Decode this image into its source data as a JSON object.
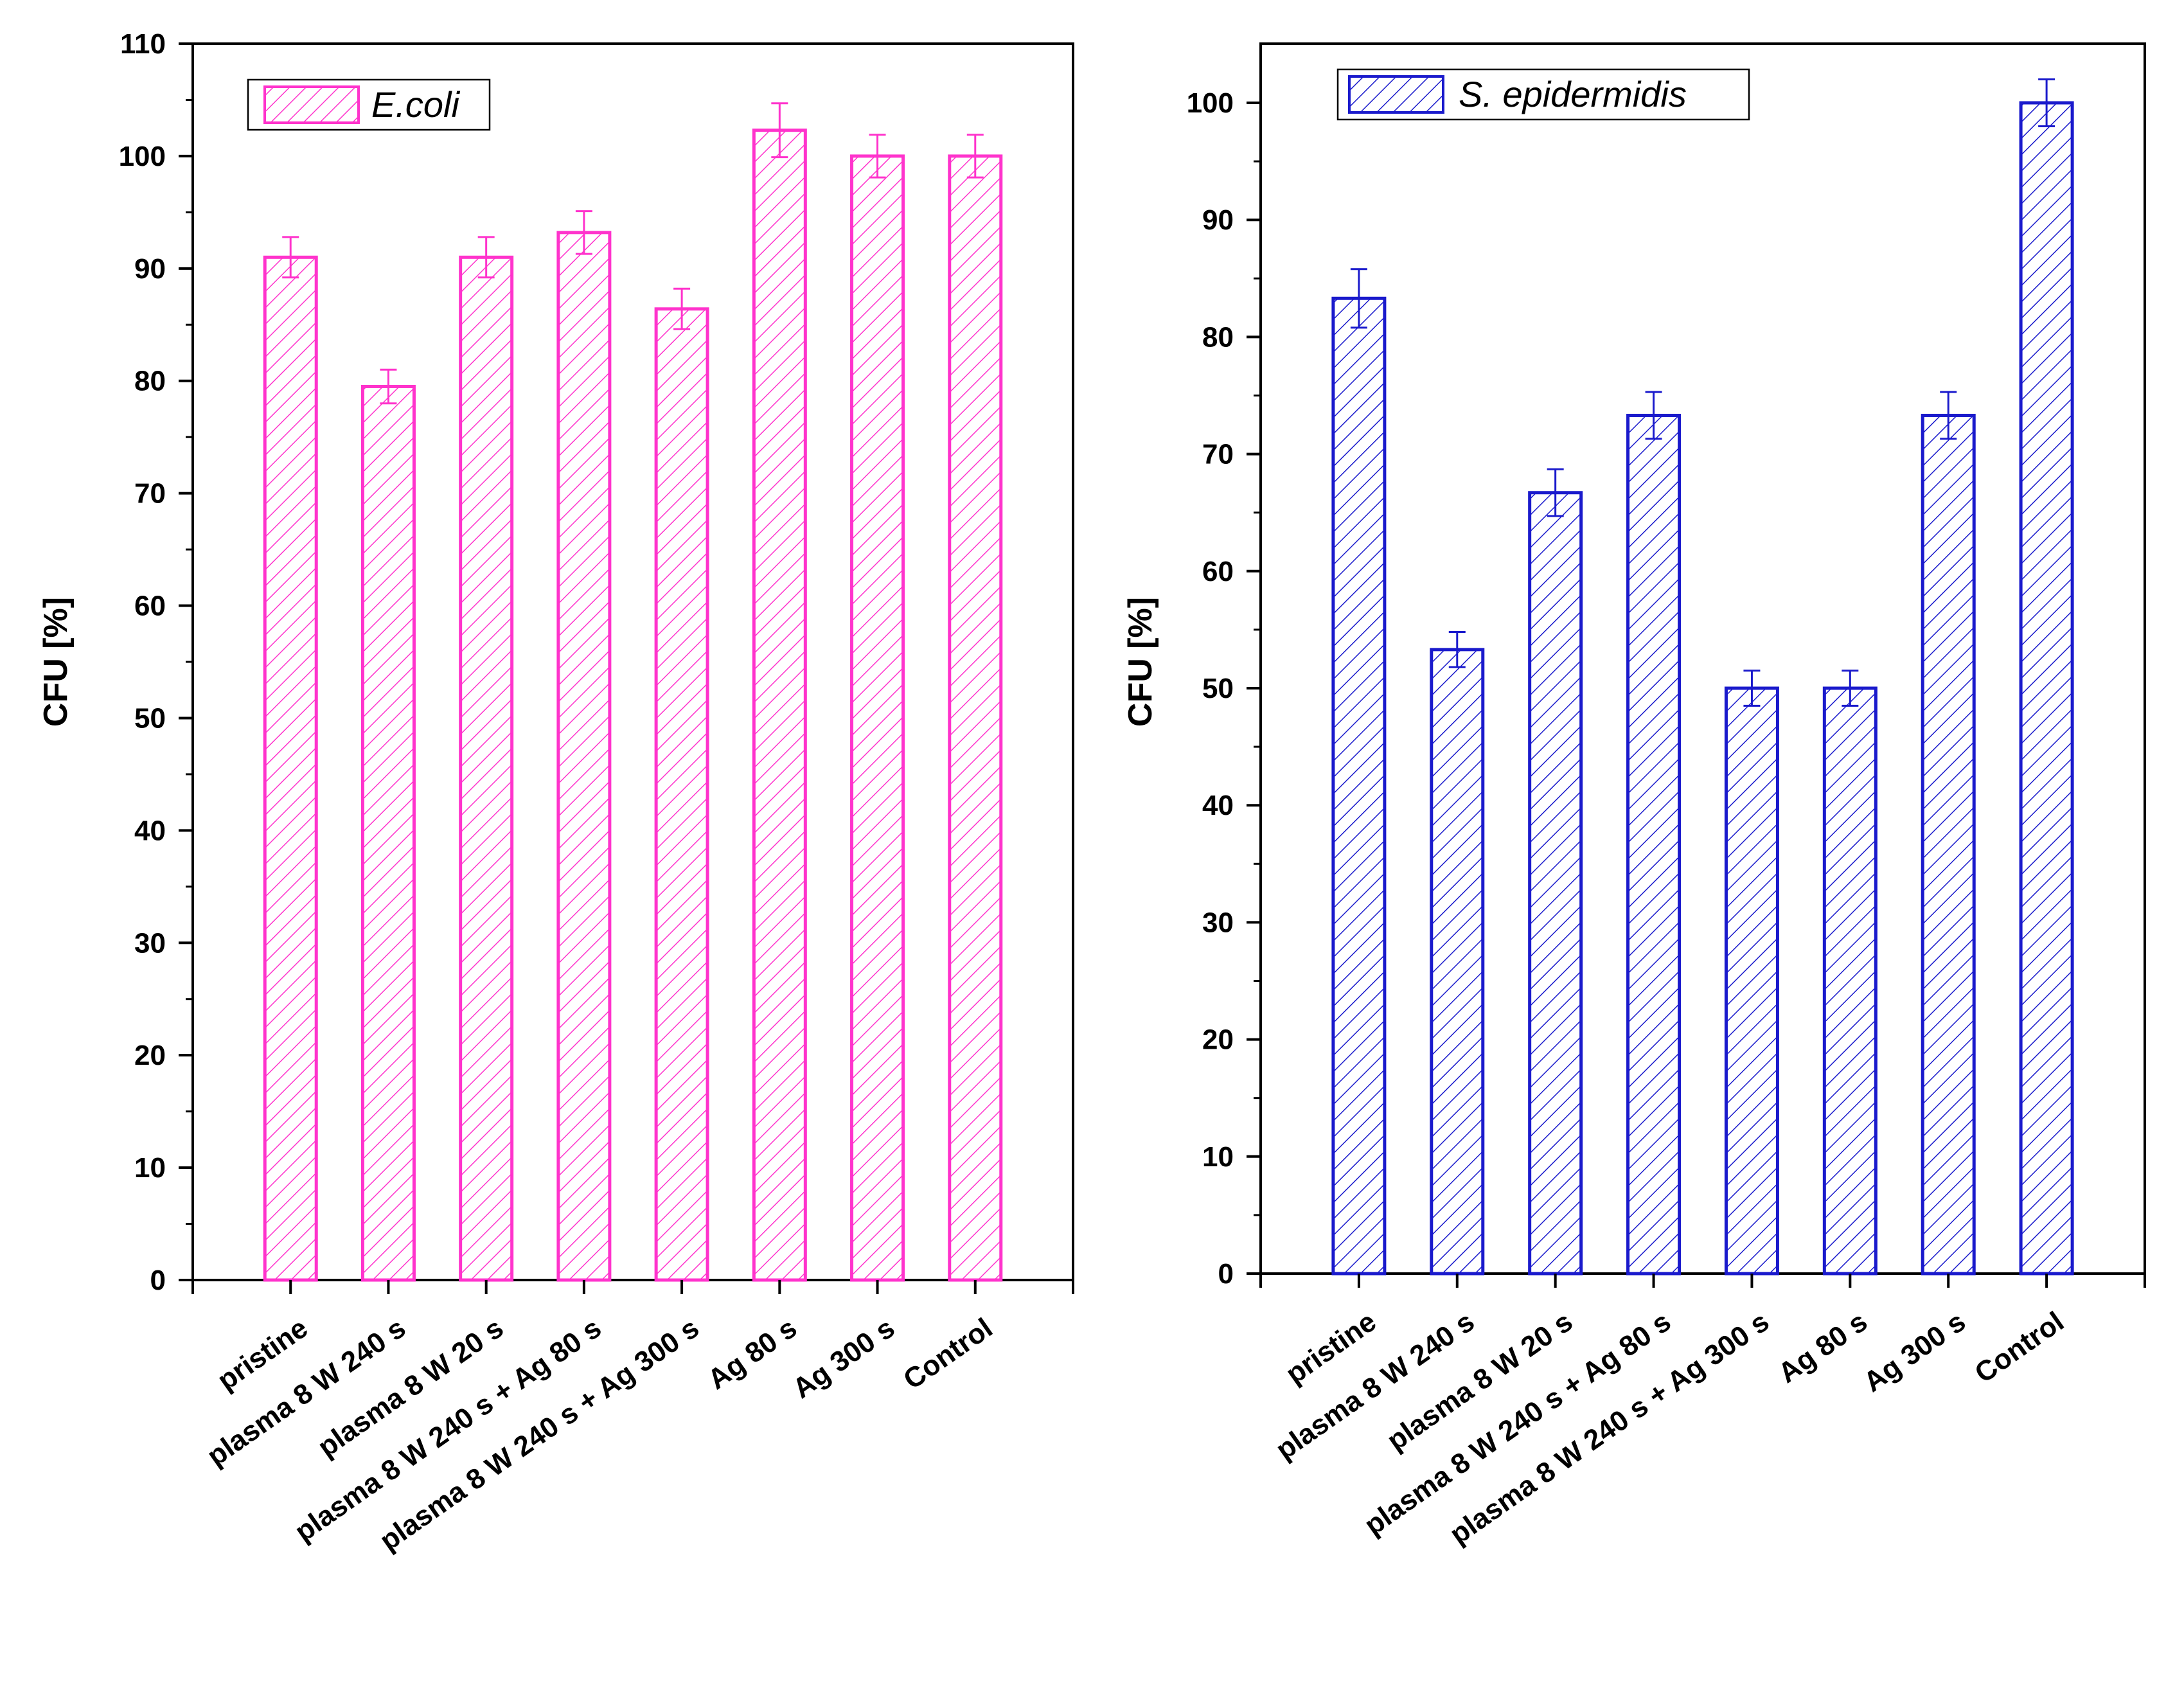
{
  "chart_data": [
    {
      "type": "bar",
      "title": "",
      "xlabel": "",
      "ylabel": "CFU [%]",
      "ylim": [
        0,
        110
      ],
      "yticks": [
        0,
        10,
        20,
        30,
        40,
        50,
        60,
        70,
        80,
        90,
        100,
        110
      ],
      "categories": [
        "pristine",
        "plasma 8 W 240 s",
        "plasma 8 W 20 s",
        "plasma 8 W 240 s + Ag 80 s",
        "plasma 8 W 240 s + Ag 300 s",
        "Ag 80 s",
        "Ag 300 s",
        "Control"
      ],
      "series": [
        {
          "name": "E.coli",
          "values": [
            91,
            79.5,
            91,
            93.2,
            86.4,
            102.3,
            100,
            100
          ],
          "errors": [
            1.8,
            1.5,
            1.8,
            1.9,
            1.8,
            2.4,
            1.9,
            1.9
          ]
        }
      ],
      "legend": "top-left",
      "grid": false,
      "color": "#ff33cc",
      "pattern": "diagonal-hatch"
    },
    {
      "type": "bar",
      "title": "",
      "xlabel": "",
      "ylabel": "CFU [%]",
      "ylim": [
        0,
        105
      ],
      "yticks": [
        0,
        10,
        20,
        30,
        40,
        50,
        60,
        70,
        80,
        90,
        100
      ],
      "categories": [
        "pristine",
        "plasma 8 W 240 s",
        "plasma 8 W 20 s",
        "plasma 8 W 240 s + Ag 80 s",
        "plasma 8 W 240 s + Ag 300 s",
        "Ag 80 s",
        "Ag 300 s",
        "Control"
      ],
      "series": [
        {
          "name": "S. epidermidis",
          "values": [
            83.3,
            53.3,
            66.7,
            73.3,
            50,
            50,
            73.3,
            100
          ],
          "errors": [
            2.5,
            1.5,
            2.0,
            2.0,
            1.5,
            1.5,
            2.0,
            2.0
          ]
        }
      ],
      "legend": "top-left",
      "grid": false,
      "color": "#1a1acc",
      "pattern": "diagonal-hatch"
    }
  ]
}
